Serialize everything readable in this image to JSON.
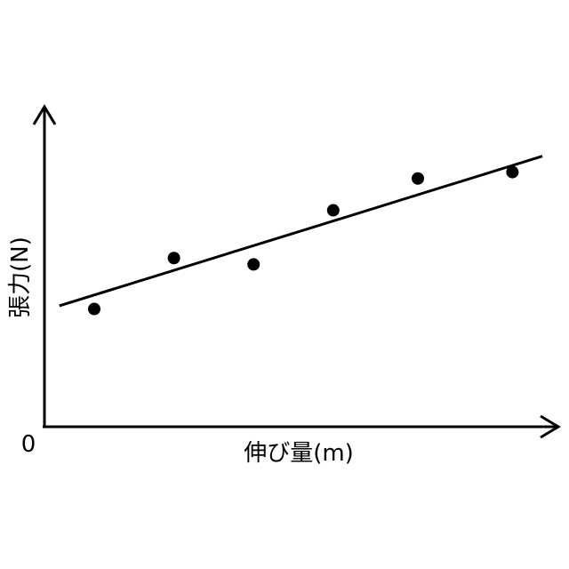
{
  "chart_data": {
    "type": "scatter",
    "title": "",
    "xlabel": "伸び量(m)",
    "ylabel": "張力(N)",
    "origin_label": "0",
    "grid": false,
    "legend": "none",
    "xlim": [
      0,
      10
    ],
    "ylim": [
      0,
      10
    ],
    "series": [
      {
        "type": "scatter",
        "x": [
          1,
          2.6,
          4.2,
          5.8,
          7.5,
          9.4
        ],
        "y": [
          3.7,
          5.3,
          5.1,
          6.8,
          7.8,
          8.0
        ]
      }
    ],
    "fit_line": {
      "x": [
        0.3,
        10
      ],
      "y": [
        3.8,
        8.5
      ]
    },
    "colors": {
      "axis": "#000000",
      "point": "#000000",
      "line": "#000000"
    }
  }
}
